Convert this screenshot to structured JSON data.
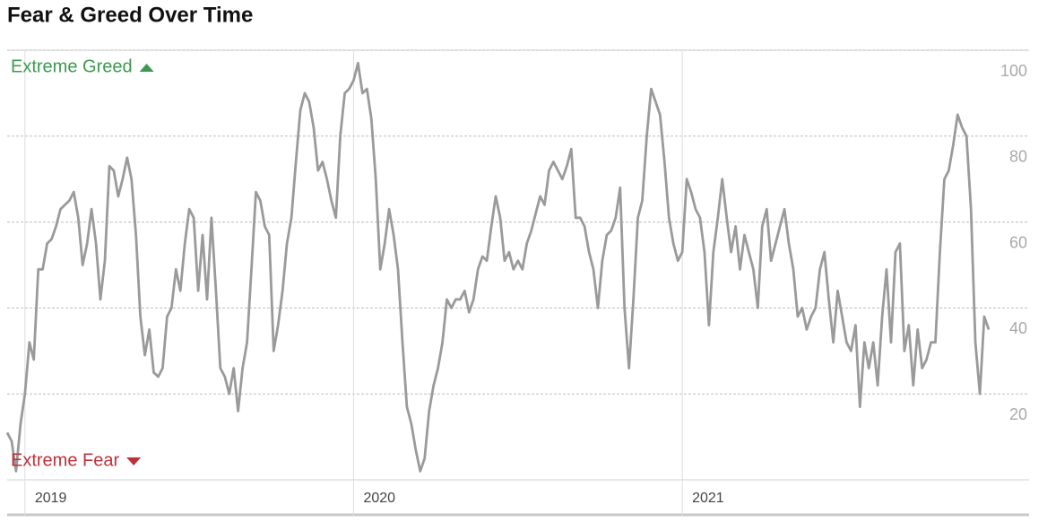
{
  "chart_data": {
    "type": "line",
    "title": "Fear & Greed Over Time",
    "annotations": [
      "Extreme Greed",
      "Extreme Fear"
    ],
    "categories": [
      null,
      null,
      null,
      null,
      "2019",
      null,
      null,
      null,
      null,
      null,
      null,
      null,
      null,
      null,
      null,
      null,
      null,
      null,
      null,
      null,
      null,
      null,
      null,
      null,
      null,
      null,
      null,
      null,
      null,
      null,
      null,
      null,
      null,
      null,
      null,
      null,
      null,
      null,
      null,
      null,
      null,
      null,
      null,
      null,
      null,
      null,
      null,
      null,
      null,
      null,
      null,
      null,
      null,
      null,
      null,
      null,
      null,
      null,
      null,
      null,
      null,
      null,
      null,
      null,
      null,
      null,
      null,
      null,
      null,
      null,
      null,
      null,
      null,
      null,
      null,
      null,
      null,
      null,
      "2020",
      null,
      null,
      null,
      null,
      null,
      null,
      null,
      null,
      null,
      null,
      null,
      null,
      null,
      null,
      null,
      null,
      null,
      null,
      null,
      null,
      null,
      null,
      null,
      null,
      null,
      null,
      null,
      null,
      null,
      null,
      null,
      null,
      null,
      null,
      null,
      null,
      null,
      null,
      null,
      null,
      null,
      null,
      null,
      null,
      null,
      null,
      null,
      null,
      null,
      null,
      null,
      null,
      null,
      null,
      null,
      null,
      null,
      null,
      null,
      null,
      null,
      null,
      null,
      null,
      null,
      null,
      null,
      null,
      null,
      null,
      null,
      null,
      null,
      "2021",
      null,
      null,
      null,
      null,
      null,
      null,
      null,
      null,
      null,
      null,
      null,
      null,
      null,
      null,
      null,
      null,
      null,
      null,
      null,
      null,
      null,
      null,
      null,
      null,
      null,
      null,
      null,
      null,
      null,
      null,
      null,
      null,
      null,
      null,
      null,
      null,
      null,
      null,
      null,
      null,
      null,
      null,
      null,
      null,
      null,
      null,
      null,
      null,
      null,
      null,
      null,
      null,
      null,
      null,
      null,
      null,
      null,
      null,
      null,
      null,
      null,
      null,
      null,
      null,
      null,
      null,
      null,
      null,
      null
    ],
    "values": [
      11,
      9,
      2,
      13,
      20,
      32,
      28,
      49,
      49,
      55,
      56,
      59,
      63,
      64,
      65,
      67,
      61,
      50,
      55,
      63,
      55,
      42,
      51,
      73,
      72,
      66,
      70,
      75,
      70,
      57,
      38,
      29,
      35,
      25,
      24,
      26,
      38,
      40,
      49,
      44,
      55,
      63,
      61,
      44,
      57,
      42,
      61,
      44,
      26,
      24,
      20,
      26,
      16,
      26,
      32,
      49,
      67,
      65,
      59,
      57,
      30,
      36,
      44,
      55,
      61,
      74,
      86,
      90,
      88,
      82,
      72,
      74,
      70,
      65,
      61,
      80,
      90,
      91,
      93,
      97,
      90,
      91,
      84,
      70,
      49,
      55,
      63,
      57,
      49,
      32,
      17,
      13,
      7,
      2,
      5,
      16,
      22,
      26,
      32,
      42,
      40,
      42,
      42,
      44,
      39,
      42,
      49,
      52,
      51,
      59,
      66,
      61,
      51,
      53,
      49,
      51,
      49,
      55,
      58,
      62,
      66,
      64,
      72,
      74,
      72,
      70,
      73,
      77,
      61,
      61,
      59,
      53,
      49,
      40,
      51,
      57,
      58,
      61,
      68,
      40,
      26,
      42,
      61,
      65,
      80,
      91,
      88,
      85,
      74,
      61,
      55,
      51,
      53,
      70,
      67,
      63,
      61,
      53,
      36,
      53,
      61,
      70,
      61,
      53,
      59,
      49,
      57,
      53,
      49,
      40,
      59,
      63,
      51,
      55,
      59,
      63,
      55,
      49,
      38,
      40,
      35,
      38,
      40,
      49,
      53,
      42,
      32,
      44,
      38,
      32,
      30,
      36,
      17,
      32,
      26,
      32,
      22,
      38,
      49,
      32,
      53,
      55,
      30,
      36,
      22,
      35,
      26,
      28,
      32,
      32,
      53,
      70,
      72,
      78,
      85,
      82,
      80,
      63,
      32,
      20,
      38,
      35
    ],
    "color": "#9a9a9a",
    "ylim": [
      0,
      100
    ],
    "yticks": [
      20,
      40,
      60,
      80,
      100
    ],
    "grid": true
  }
}
